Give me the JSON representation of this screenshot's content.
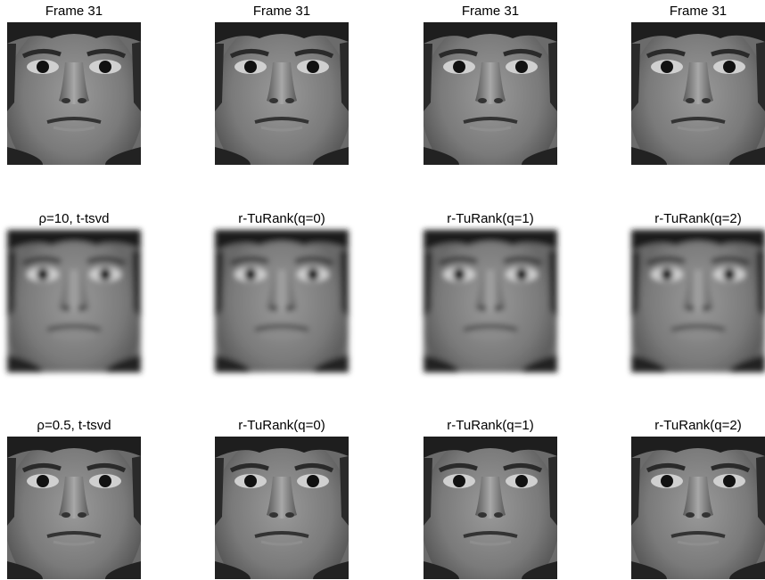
{
  "panels": [
    [
      "Frame 31",
      "Frame 31",
      "Frame 31",
      "Frame 31"
    ],
    [
      "ρ=10, t-tsvd",
      "r-TuRank(q=0)",
      "r-TuRank(q=1)",
      "r-TuRank(q=2)"
    ],
    [
      "ρ=0.5, t-tsvd",
      "r-TuRank(q=0)",
      "r-TuRank(q=1)",
      "r-TuRank(q=2)"
    ]
  ]
}
